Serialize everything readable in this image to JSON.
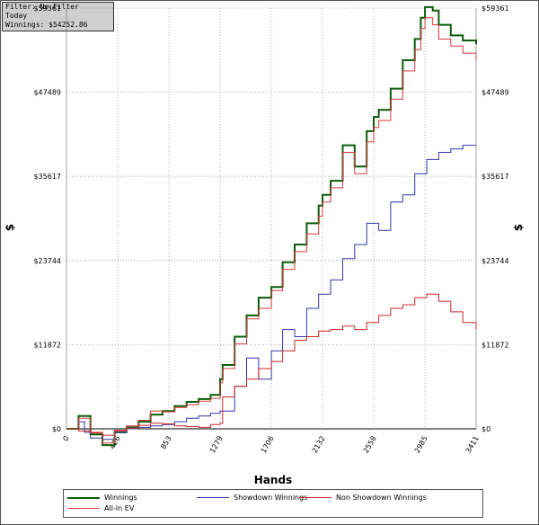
{
  "info": {
    "filter": "Filter: No Filter",
    "period": "Today",
    "winnings": "Winnings: $54252.86"
  },
  "colors": {
    "winnings": "#0a5c0a",
    "showdown": "#3535a8",
    "non_showdown": "#cc2828",
    "allin_ev": "#d83a3a",
    "grid": "#9a9a9a"
  },
  "chart_data": {
    "type": "line",
    "xlabel": "Hands",
    "ylabel": "$",
    "xlim": [
      0,
      3411
    ],
    "ylim": [
      0,
      59361
    ],
    "x_ticks": [
      "0",
      "426",
      "853",
      "1279",
      "1706",
      "2132",
      "2558",
      "2985",
      "3411"
    ],
    "y_ticks": [
      "$0",
      "$11872",
      "$23744",
      "$35617",
      "$47489",
      "$59361"
    ],
    "grid": true,
    "legend_position": "bottom",
    "series": [
      {
        "name": "Winnings",
        "x": [
          0,
          100,
          200,
          300,
          400,
          500,
          600,
          700,
          800,
          900,
          1000,
          1100,
          1200,
          1279,
          1300,
          1400,
          1500,
          1600,
          1706,
          1800,
          1900,
          2000,
          2100,
          2132,
          2200,
          2300,
          2400,
          2500,
          2558,
          2600,
          2700,
          2800,
          2900,
          2950,
          2985,
          3050,
          3100,
          3200,
          3300,
          3411
        ],
        "values": [
          0,
          1800,
          -800,
          -2300,
          -500,
          200,
          1000,
          2000,
          2500,
          3200,
          3800,
          4200,
          4800,
          7000,
          9000,
          13000,
          16000,
          18500,
          20000,
          23500,
          26000,
          29000,
          31500,
          33000,
          35000,
          40000,
          37000,
          42000,
          44000,
          45000,
          48000,
          52000,
          55000,
          58000,
          59500,
          59000,
          57000,
          55500,
          54800,
          54252
        ]
      },
      {
        "name": "Showdown Winnings",
        "x": [
          0,
          100,
          150,
          200,
          300,
          400,
          500,
          600,
          700,
          800,
          900,
          1000,
          1100,
          1200,
          1279,
          1400,
          1500,
          1600,
          1706,
          1800,
          1900,
          2000,
          2100,
          2200,
          2300,
          2400,
          2500,
          2600,
          2700,
          2800,
          2900,
          3000,
          3100,
          3200,
          3300,
          3411
        ],
        "values": [
          0,
          1000,
          -500,
          -1300,
          -1500,
          -500,
          0,
          200,
          400,
          600,
          1000,
          1500,
          1800,
          2200,
          2500,
          6000,
          10000,
          7000,
          11000,
          14000,
          13000,
          17000,
          19000,
          21000,
          24000,
          26000,
          29000,
          28000,
          32000,
          33000,
          36000,
          38000,
          39000,
          39500,
          40000,
          40000
        ]
      },
      {
        "name": "Non Showdown Winnings",
        "x": [
          0,
          100,
          200,
          300,
          400,
          500,
          600,
          700,
          800,
          900,
          1000,
          1100,
          1200,
          1279,
          1300,
          1400,
          1500,
          1600,
          1706,
          1800,
          1900,
          2000,
          2100,
          2200,
          2300,
          2400,
          2500,
          2600,
          2700,
          2800,
          2900,
          3000,
          3100,
          3200,
          3300,
          3411
        ],
        "values": [
          0,
          -300,
          -600,
          -900,
          -200,
          100,
          500,
          800,
          700,
          400,
          300,
          200,
          600,
          800,
          4500,
          6000,
          7000,
          8500,
          9500,
          11000,
          12500,
          13000,
          13800,
          14000,
          14500,
          14000,
          15000,
          16000,
          17000,
          17500,
          18500,
          19000,
          18000,
          16500,
          15000,
          14000
        ]
      },
      {
        "name": "All-In EV",
        "x": [
          0,
          100,
          200,
          300,
          400,
          500,
          600,
          700,
          800,
          900,
          1000,
          1100,
          1200,
          1279,
          1300,
          1400,
          1500,
          1600,
          1706,
          1800,
          1900,
          2000,
          2100,
          2132,
          2200,
          2300,
          2400,
          2500,
          2558,
          2600,
          2700,
          2800,
          2900,
          2950,
          2985,
          3050,
          3100,
          3200,
          3300,
          3411
        ],
        "values": [
          0,
          1500,
          -500,
          -2000,
          -300,
          400,
          1200,
          2500,
          2400,
          3000,
          3400,
          3900,
          4300,
          6500,
          8500,
          12000,
          15500,
          17000,
          19500,
          22500,
          25000,
          27500,
          30000,
          32000,
          34000,
          39000,
          36000,
          40500,
          42500,
          43500,
          46500,
          50500,
          53500,
          56500,
          58000,
          57000,
          55000,
          54000,
          53000,
          52000
        ]
      }
    ]
  }
}
